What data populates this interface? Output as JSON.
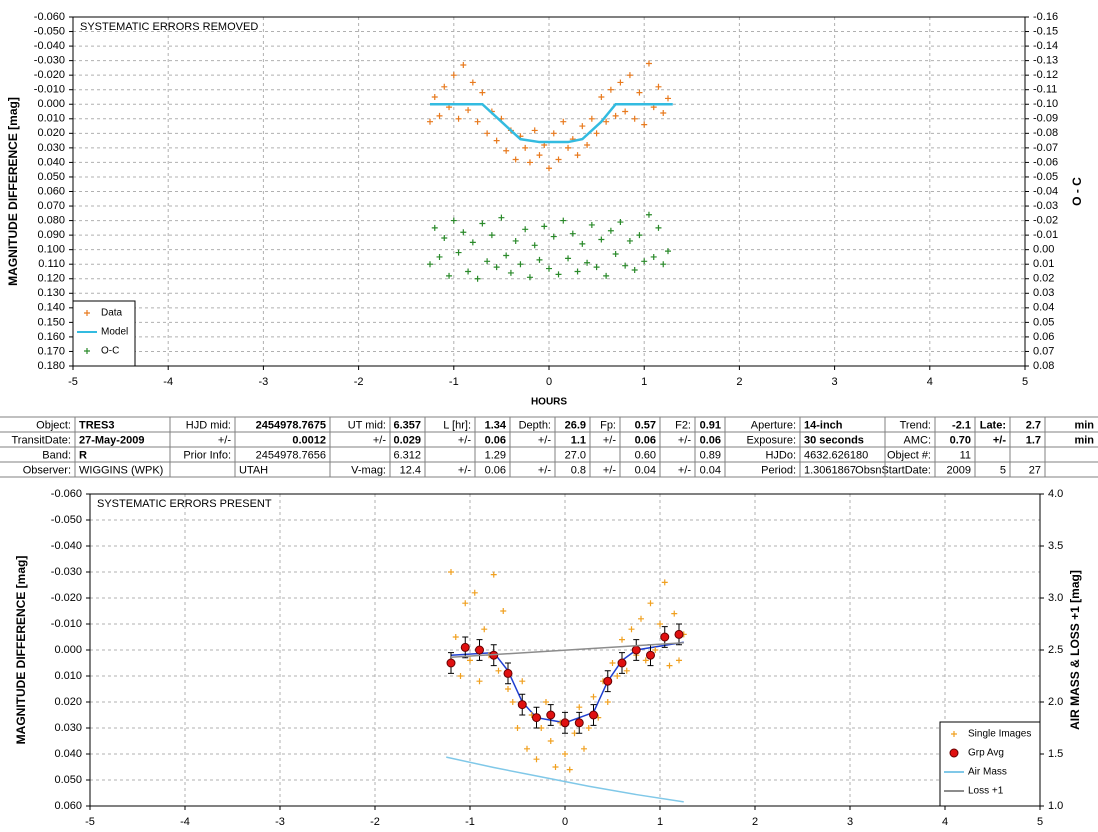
{
  "chart_data": [
    {
      "type": "scatter",
      "title": "SYSTEMATIC ERRORS REMOVED",
      "xlabel": "HOURS",
      "ylabel": "MAGNITUDE DIFFERENCE [mag]",
      "y2label": "O - C",
      "xlim": [
        -5,
        5
      ],
      "xticks": [
        -5,
        -4,
        -3,
        -2,
        -1,
        0,
        1,
        2,
        3,
        4,
        5
      ],
      "ylim": [
        0.18,
        -0.06
      ],
      "yticks": [
        {
          "value": -0.06,
          "label": "-0.060"
        },
        {
          "value": -0.05,
          "label": "-0.050"
        },
        {
          "value": -0.04,
          "label": "-0.040"
        },
        {
          "value": -0.03,
          "label": "-0.030"
        },
        {
          "value": -0.02,
          "label": "-0.020"
        },
        {
          "value": -0.01,
          "label": "-0.010"
        },
        {
          "value": 0,
          "label": "0.000"
        },
        {
          "value": 0.01,
          "label": "0.010"
        },
        {
          "value": 0.02,
          "label": "0.020"
        },
        {
          "value": 0.03,
          "label": "0.030"
        },
        {
          "value": 0.04,
          "label": "0.040"
        },
        {
          "value": 0.05,
          "label": "0.050"
        },
        {
          "value": 0.06,
          "label": "0.060"
        },
        {
          "value": 0.07,
          "label": "0.070"
        },
        {
          "value": 0.08,
          "label": "0.080"
        },
        {
          "value": 0.09,
          "label": "0.090"
        },
        {
          "value": 0.1,
          "label": "0.100"
        },
        {
          "value": 0.11,
          "label": "0.110"
        },
        {
          "value": 0.12,
          "label": "0.120"
        },
        {
          "value": 0.13,
          "label": "0.130"
        },
        {
          "value": 0.14,
          "label": "0.140"
        },
        {
          "value": 0.15,
          "label": "0.150"
        },
        {
          "value": 0.16,
          "label": "0.160"
        },
        {
          "value": 0.17,
          "label": "0.170"
        },
        {
          "value": 0.18,
          "label": "0.180"
        }
      ],
      "y2lim": [
        0.08,
        -0.16
      ],
      "y2ticks": [
        -0.16,
        -0.15,
        -0.14,
        -0.13,
        -0.12,
        -0.11,
        {
          "value": -0.1,
          "label": "-0.10"
        },
        -0.09,
        -0.08,
        -0.07,
        -0.06,
        -0.05,
        -0.04,
        -0.03,
        -0.02,
        -0.01,
        {
          "value": 0,
          "label": "0.00"
        },
        0.01,
        0.02,
        0.03,
        0.04,
        0.05,
        0.06,
        0.07,
        0.08
      ],
      "grid": true,
      "legend": "lower left",
      "series": [
        {
          "name": "Data",
          "color": "#e87a1e",
          "style": "plus",
          "x": [
            -1.25,
            -1.2,
            -1.15,
            -1.1,
            -1.05,
            -1.0,
            -0.95,
            -0.9,
            -0.85,
            -0.8,
            -0.75,
            -0.7,
            -0.65,
            -0.6,
            -0.55,
            -0.5,
            -0.45,
            -0.4,
            -0.35,
            -0.3,
            -0.25,
            -0.2,
            -0.15,
            -0.1,
            -0.05,
            0,
            0.05,
            0.1,
            0.15,
            0.2,
            0.25,
            0.3,
            0.35,
            0.4,
            0.45,
            0.5,
            0.55,
            0.6,
            0.65,
            0.7,
            0.75,
            0.8,
            0.85,
            0.9,
            0.95,
            1.0,
            1.05,
            1.1,
            1.15,
            1.2,
            1.25
          ],
          "values": [
            0.012,
            -0.005,
            0.008,
            -0.012,
            0.002,
            -0.02,
            0.01,
            -0.027,
            0.004,
            -0.015,
            0.012,
            -0.008,
            0.02,
            0.005,
            0.025,
            0.01,
            0.032,
            0.018,
            0.038,
            0.022,
            0.03,
            0.04,
            0.018,
            0.035,
            0.028,
            0.044,
            0.02,
            0.038,
            0.012,
            0.03,
            0.024,
            0.035,
            0.015,
            0.028,
            0.01,
            0.02,
            -0.005,
            0.012,
            -0.01,
            0.008,
            -0.015,
            0.005,
            -0.02,
            0.01,
            -0.008,
            0.014,
            -0.028,
            0.002,
            -0.012,
            0.006,
            -0.004
          ]
        },
        {
          "name": "Model",
          "color": "#33bbe0",
          "style": "line",
          "x": [
            -1.25,
            -0.7,
            -0.5,
            -0.3,
            -0.1,
            0.2,
            0.35,
            0.55,
            0.7,
            1.3
          ],
          "values": [
            0,
            0,
            0.012,
            0.024,
            0.026,
            0.026,
            0.024,
            0.012,
            0,
            0
          ]
        },
        {
          "name": "O-C",
          "color": "#2a8a2a",
          "style": "plus",
          "axis": "y2",
          "x": [
            -1.25,
            -1.2,
            -1.15,
            -1.1,
            -1.05,
            -1.0,
            -0.95,
            -0.9,
            -0.85,
            -0.8,
            -0.75,
            -0.7,
            -0.65,
            -0.6,
            -0.55,
            -0.5,
            -0.45,
            -0.4,
            -0.35,
            -0.3,
            -0.25,
            -0.2,
            -0.15,
            -0.1,
            -0.05,
            0,
            0.05,
            0.1,
            0.15,
            0.2,
            0.25,
            0.3,
            0.35,
            0.4,
            0.45,
            0.5,
            0.55,
            0.6,
            0.65,
            0.7,
            0.75,
            0.8,
            0.85,
            0.9,
            0.95,
            1.0,
            1.05,
            1.1,
            1.15,
            1.2,
            1.25
          ],
          "values": [
            0.01,
            -0.015,
            0.005,
            -0.008,
            0.018,
            -0.02,
            0.002,
            -0.012,
            0.015,
            -0.005,
            0.02,
            -0.018,
            0.008,
            -0.01,
            0.012,
            -0.022,
            0.004,
            0.016,
            -0.006,
            0.01,
            -0.014,
            0.019,
            -0.003,
            0.007,
            -0.016,
            0.013,
            -0.009,
            0.017,
            -0.02,
            0.006,
            -0.011,
            0.015,
            -0.004,
            0.009,
            -0.017,
            0.012,
            -0.007,
            0.018,
            -0.013,
            0.003,
            -0.019,
            0.011,
            -0.006,
            0.014,
            -0.01,
            0.008,
            -0.024,
            0.005,
            -0.015,
            0.01,
            0.001
          ]
        }
      ]
    },
    {
      "type": "scatter",
      "title": "SYSTEMATIC ERRORS PRESENT",
      "ylabel": "MAGNITUDE DIFFERENCE [mag]",
      "y2label": "AIR MASS & LOSS +1 [mag]",
      "xlim": [
        -5,
        5
      ],
      "xticks": [
        -5,
        -4,
        -3,
        -2,
        -1,
        0,
        1,
        2,
        3,
        4,
        5
      ],
      "ylim": [
        0.06,
        -0.06
      ],
      "yticks": [
        {
          "value": -0.06,
          "label": "-0.060"
        },
        {
          "value": -0.05,
          "label": "-0.050"
        },
        {
          "value": -0.04,
          "label": "-0.040"
        },
        {
          "value": -0.03,
          "label": "-0.030"
        },
        {
          "value": -0.02,
          "label": "-0.020"
        },
        {
          "value": -0.01,
          "label": "-0.010"
        },
        {
          "value": 0,
          "label": "0.000"
        },
        {
          "value": 0.01,
          "label": "0.010"
        },
        {
          "value": 0.02,
          "label": "0.020"
        },
        {
          "value": 0.03,
          "label": "0.030"
        },
        {
          "value": 0.04,
          "label": "0.040"
        },
        {
          "value": 0.05,
          "label": "0.050"
        },
        {
          "value": 0.06,
          "label": "0.060"
        }
      ],
      "y2lim": [
        1,
        4
      ],
      "y2ticks": [
        {
          "value": 1,
          "label": "1.0"
        },
        1.5,
        {
          "value": 2,
          "label": "2.0"
        },
        2.5,
        {
          "value": 3,
          "label": "3.0"
        },
        3.5,
        {
          "value": 4,
          "label": "4.0"
        }
      ],
      "grid": true,
      "legend": "lower right",
      "model": {
        "color": "#1f3fd0",
        "style": "line",
        "x": [
          -1.2,
          -0.75,
          -0.6,
          -0.45,
          -0.3,
          0,
          0.3,
          0.45,
          0.6,
          0.75,
          1.25
        ],
        "values": [
          0.002,
          0.001,
          0.008,
          0.02,
          0.026,
          0.028,
          0.024,
          0.012,
          0.004,
          0,
          -0.003
        ]
      },
      "series": [
        {
          "name": "Single Images",
          "color": "#f0a020",
          "style": "plus",
          "x": [
            -1.2,
            -1.15,
            -1.1,
            -1.05,
            -1.0,
            -0.95,
            -0.9,
            -0.85,
            -0.8,
            -0.75,
            -0.7,
            -0.65,
            -0.6,
            -0.55,
            -0.5,
            -0.45,
            -0.4,
            -0.35,
            -0.3,
            -0.25,
            -0.2,
            -0.15,
            -0.1,
            -0.05,
            0,
            0.05,
            0.1,
            0.15,
            0.2,
            0.25,
            0.3,
            0.35,
            0.4,
            0.45,
            0.5,
            0.55,
            0.6,
            0.65,
            0.7,
            0.75,
            0.8,
            0.85,
            0.9,
            0.95,
            1.0,
            1.05,
            1.1,
            1.15,
            1.2,
            1.25
          ],
          "values": [
            -0.03,
            -0.005,
            0.01,
            -0.018,
            0.004,
            -0.022,
            0.012,
            -0.008,
            0.002,
            -0.029,
            0.008,
            -0.015,
            0.015,
            0.02,
            0.03,
            0.012,
            0.038,
            0.025,
            0.042,
            0.03,
            0.02,
            0.035,
            0.045,
            0.028,
            0.04,
            0.046,
            0.032,
            0.022,
            0.038,
            0.03,
            0.018,
            0.026,
            0.012,
            0.02,
            0.005,
            0.01,
            -0.004,
            0.008,
            -0.008,
            0.002,
            -0.012,
            0.004,
            -0.018,
            0,
            -0.01,
            -0.026,
            0.006,
            -0.014,
            0.004,
            -0.006
          ]
        },
        {
          "name": "Grp Avg",
          "color": "#e01010",
          "style": "dot",
          "x": [
            -1.2,
            -1.05,
            -0.9,
            -0.75,
            -0.6,
            -0.45,
            -0.3,
            -0.15,
            0,
            0.15,
            0.3,
            0.45,
            0.6,
            0.75,
            0.9,
            1.05,
            1.2
          ],
          "values": [
            0.005,
            -0.001,
            0,
            0.002,
            0.009,
            0.021,
            0.026,
            0.025,
            0.028,
            0.028,
            0.025,
            0.012,
            0.005,
            0,
            0.002,
            -0.005,
            -0.006
          ],
          "errors": [
            0.004,
            0.004,
            0.004,
            0.004,
            0.004,
            0.004,
            0.004,
            0.004,
            0.004,
            0.004,
            0.004,
            0.004,
            0.004,
            0.004,
            0.004,
            0.004,
            0.004
          ]
        },
        {
          "name": "Air Mass",
          "color": "#80c8e8",
          "style": "line",
          "axis": "y2",
          "x": [
            -1.25,
            -0.75,
            -0.25,
            0.25,
            0.75,
            1.25
          ],
          "values": [
            1.47,
            1.37,
            1.28,
            1.19,
            1.11,
            1.04
          ]
        },
        {
          "name": "Loss +1",
          "color": "#8c8c8c",
          "style": "line",
          "axis": "y2",
          "x": [
            -1.2,
            1.25
          ],
          "values": [
            2.43,
            2.57
          ]
        }
      ]
    }
  ],
  "table": {
    "rows": [
      [
        "Object:",
        "TRES3",
        "HJD mid:",
        "2454978.7675",
        "UT mid:",
        "6.357",
        "L [hr]:",
        "1.34",
        "Depth:",
        "26.9",
        "Fp:",
        "0.57",
        "F2:",
        "0.91",
        "Aperture:",
        "14-inch",
        "Trend:",
        "-2.1",
        "Late:",
        "2.7",
        "min"
      ],
      [
        "TransitDate:",
        "27-May-2009",
        "+/-",
        "0.0012",
        "+/-",
        "0.029",
        "+/-",
        "0.06",
        "+/-",
        "1.1",
        "+/-",
        "0.06",
        "+/-",
        "0.06",
        "Exposure:",
        "30 seconds",
        "AMC:",
        "0.70",
        "+/-",
        "1.7",
        "min"
      ],
      [
        "Band:",
        "R",
        "Prior Info:",
        "2454978.7656",
        null,
        "6.312",
        null,
        "1.29",
        null,
        "27.0",
        null,
        "0.60",
        null,
        "0.89",
        "HJDo:",
        "4632.626180",
        "Object #:",
        "11",
        null,
        null,
        null
      ],
      [
        "Observer:",
        "WIGGINS (WPK)",
        null,
        "UTAH",
        "V-mag:",
        "12.4",
        "+/-",
        "0.06",
        "+/-",
        "0.8",
        "+/-",
        "0.04",
        "+/-",
        "0.04",
        "Period:",
        "1.3061867",
        "ObsnStartDate:",
        "2009",
        "5",
        "27"
      ]
    ]
  }
}
